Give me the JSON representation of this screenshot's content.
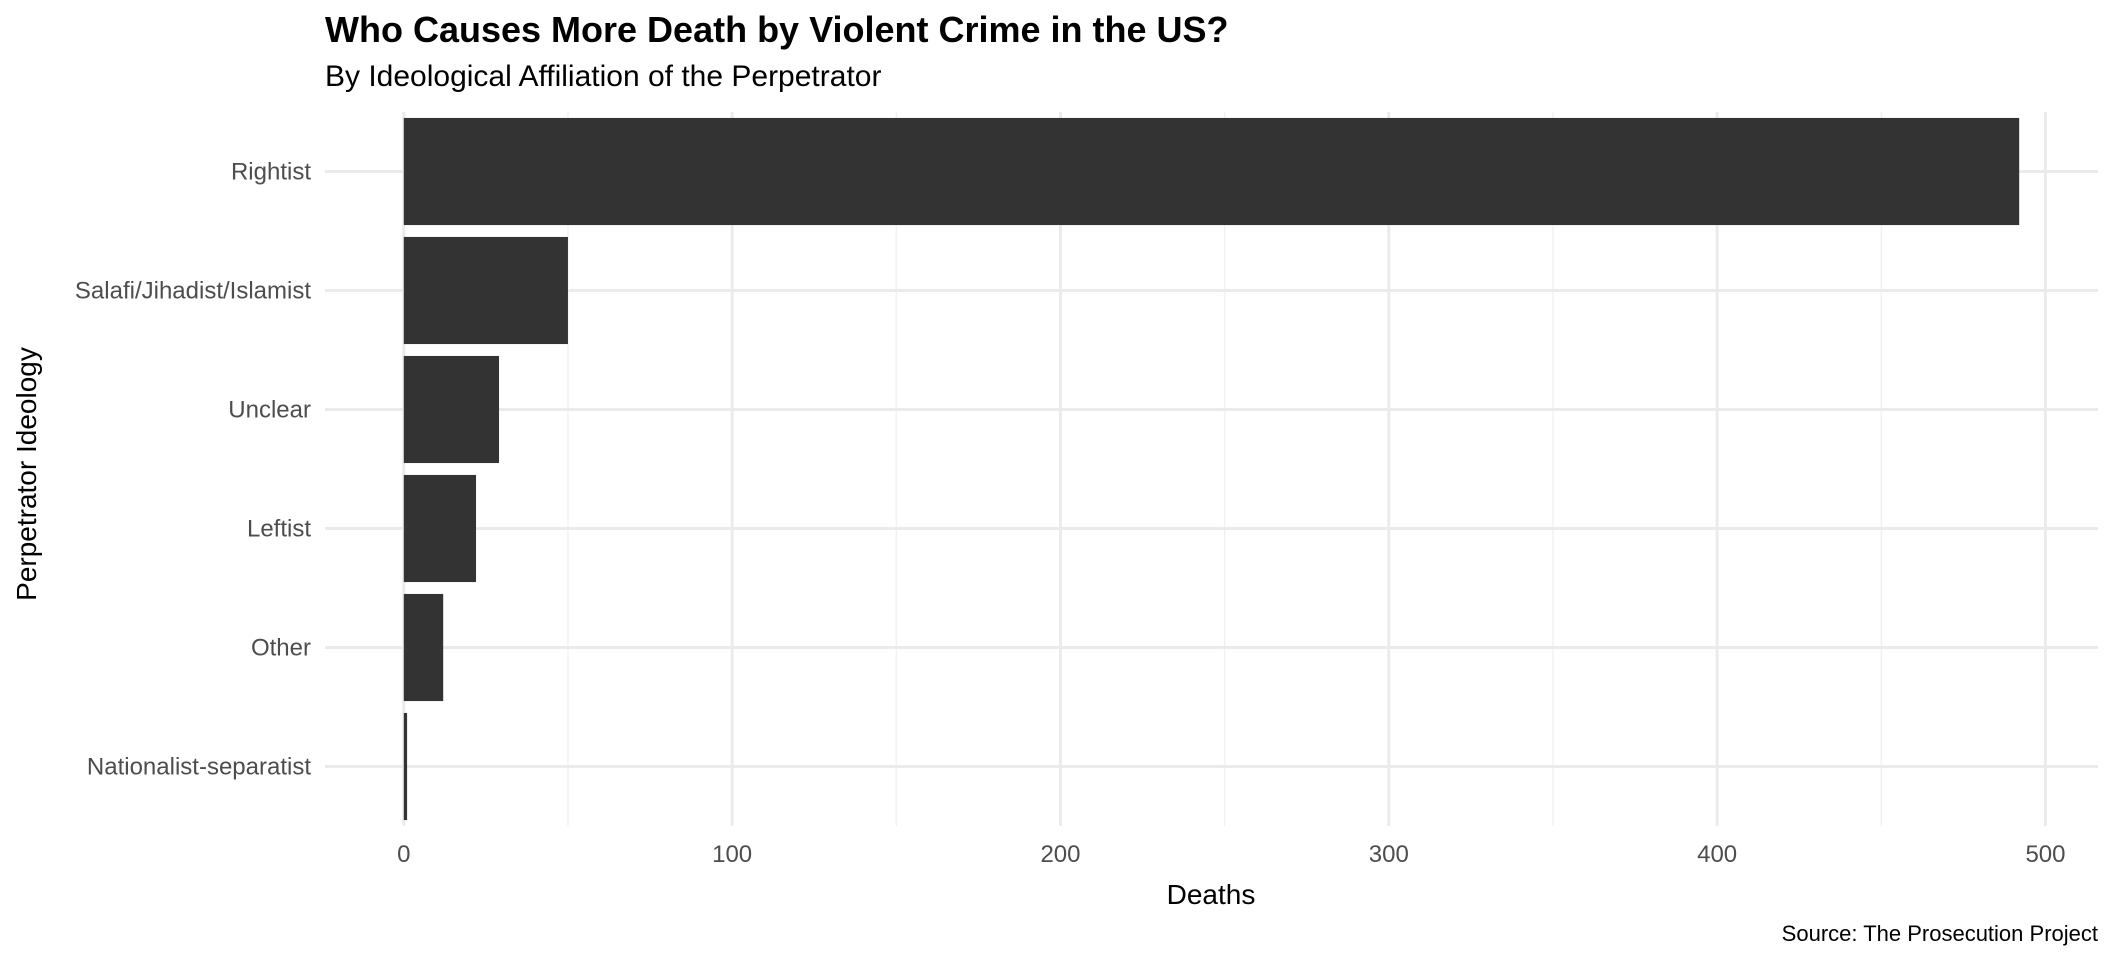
{
  "chart_data": {
    "type": "bar",
    "orientation": "horizontal",
    "title": "Who Causes More Death by Violent Crime in the US?",
    "subtitle": "By Ideological Affiliation of the Perpetrator",
    "xlabel": "Deaths",
    "ylabel": "Perpetrator Ideology",
    "caption": "Source: The Prosecution Project",
    "categories": [
      "Rightist",
      "Salafi/Jihadist/Islamist",
      "Unclear",
      "Leftist",
      "Other",
      "Nationalist-separatist"
    ],
    "values": [
      492,
      50,
      29,
      22,
      12,
      1
    ],
    "xlim": [
      -24,
      516
    ],
    "x_ticks": [
      0,
      100,
      200,
      300,
      400,
      500
    ],
    "x_tick_labels": [
      "0",
      "100",
      "200",
      "300",
      "400",
      "500"
    ],
    "grid": true,
    "legend": "none",
    "bar_color": "#333333"
  }
}
